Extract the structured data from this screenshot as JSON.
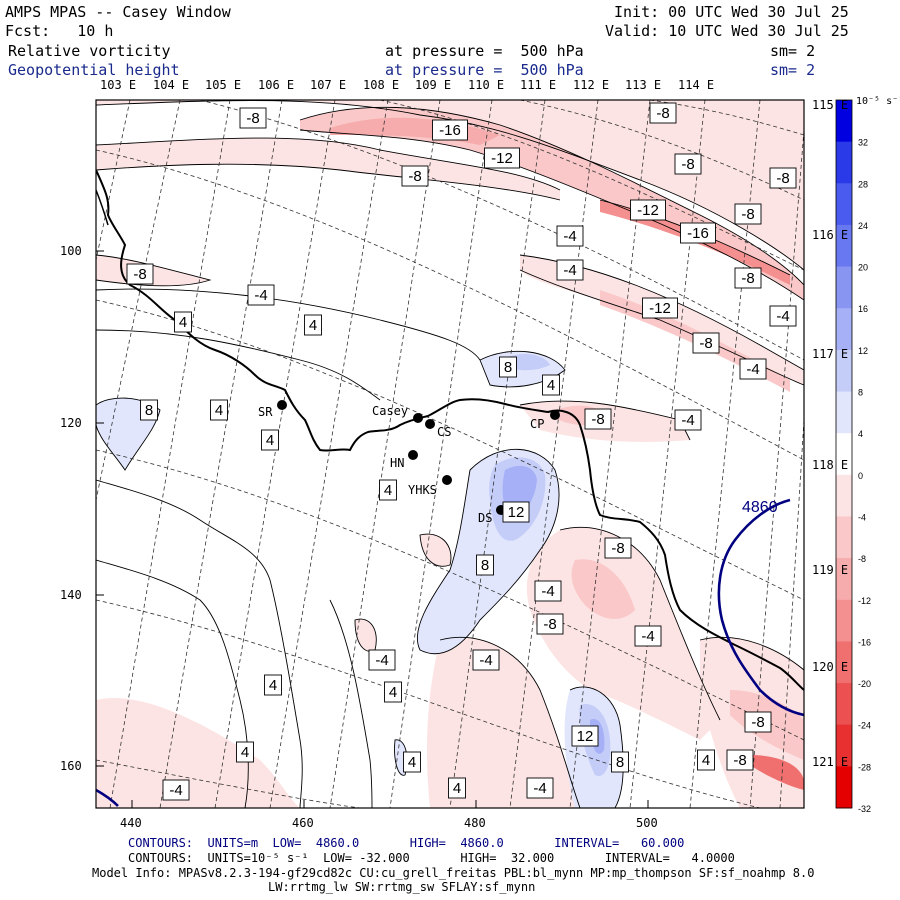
{
  "header": {
    "title": "AMPS MPAS -- Casey Window",
    "forecast": "Fcst:   10 h",
    "init": "Init: 00 UTC Wed 30 Jul 25",
    "valid": "Valid: 10 UTC Wed 30 Jul 25",
    "field1": {
      "name": "Relative vorticity",
      "level": "at pressure =  500 hPa",
      "sm": "sm= 2"
    },
    "field2": {
      "name": "Geopotential height",
      "level": "at pressure =  500 hPa",
      "sm": "sm= 2"
    }
  },
  "map": {
    "top_lon_labels": [
      "103 E",
      "104 E",
      "105 E",
      "106 E",
      "107 E",
      "108 E",
      "109 E",
      "110 E",
      "111 E",
      "112 E",
      "113 E",
      "114 E",
      "115 E"
    ],
    "right_lon_labels": [
      "116 E",
      "117 E",
      "118 E",
      "119 E",
      "120 E",
      "121 E"
    ],
    "x_ticks": [
      "440",
      "460",
      "480",
      "500"
    ],
    "y_ticks": [
      "100",
      "120",
      "140",
      "160"
    ],
    "stations": [
      {
        "label": "SR"
      },
      {
        "label": "Casey"
      },
      {
        "label": "CS"
      },
      {
        "label": "HN"
      },
      {
        "label": "YHKS"
      },
      {
        "label": "DS"
      },
      {
        "label": "CP"
      }
    ],
    "height_contour_label": "4860",
    "contour_labels": [
      {
        "v": "-8"
      },
      {
        "v": "-16"
      },
      {
        "v": "-12"
      },
      {
        "v": "-8"
      },
      {
        "v": "-8"
      },
      {
        "v": "-8"
      },
      {
        "v": "-8"
      },
      {
        "v": "-12"
      },
      {
        "v": "-8"
      },
      {
        "v": "-16"
      },
      {
        "v": "-4"
      },
      {
        "v": "-4"
      },
      {
        "v": "-8"
      },
      {
        "v": "-8"
      },
      {
        "v": "-4"
      },
      {
        "v": "-12"
      },
      {
        "v": "-4"
      },
      {
        "v": "4"
      },
      {
        "v": "4"
      },
      {
        "v": "-8"
      },
      {
        "v": "-4"
      },
      {
        "v": "8"
      },
      {
        "v": "4"
      },
      {
        "v": "8"
      },
      {
        "v": "4"
      },
      {
        "v": "-8"
      },
      {
        "v": "-4"
      },
      {
        "v": "4"
      },
      {
        "v": "4"
      },
      {
        "v": "12"
      },
      {
        "v": "8"
      },
      {
        "v": "-8"
      },
      {
        "v": "-4"
      },
      {
        "v": "-8"
      },
      {
        "v": "-4"
      },
      {
        "v": "-4"
      },
      {
        "v": "-4"
      },
      {
        "v": "4"
      },
      {
        "v": "4"
      },
      {
        "v": "12"
      },
      {
        "v": "8"
      },
      {
        "v": "-8"
      },
      {
        "v": "4"
      },
      {
        "v": "-8"
      },
      {
        "v": "4"
      },
      {
        "v": "4"
      },
      {
        "v": "4"
      },
      {
        "v": "-4"
      },
      {
        "v": "-4"
      }
    ]
  },
  "colorbar": {
    "unit": "10⁻⁵ s⁻¹",
    "ticks": [
      "32",
      "28",
      "24",
      "20",
      "16",
      "12",
      "8",
      "4",
      "0",
      "-4",
      "-8",
      "-12",
      "-16",
      "-20",
      "-24",
      "-28",
      "-32"
    ],
    "colors": [
      "#0000e0",
      "#2a3ae8",
      "#4a5cf0",
      "#6878f0",
      "#8896f2",
      "#a6b0f6",
      "#c4ccf8",
      "#e2e6fc",
      "#ffffff",
      "#fde4e4",
      "#fac8c8",
      "#f6acac",
      "#f49090",
      "#f07070",
      "#ec5050",
      "#e83030",
      "#e40000"
    ]
  },
  "footer": {
    "line1": "CONTOURS:  UNITS=m  LOW=  4860.0       HIGH=  4860.0       INTERVAL=   60.000",
    "line2": "CONTOURS:  UNITS=10⁻⁵ s⁻¹  LOW= -32.000       HIGH=  32.000       INTERVAL=   4.0000",
    "line3": "Model Info: MPASv8.2.3-194-gf29cd82c CU:cu_grell_freitas PBL:bl_mynn MP:mp_thompson SF:sf_noahmp 8.0",
    "line4": "LW:rrtmg_lw SW:rrtmg_sw SFLAY:sf_mynn"
  }
}
